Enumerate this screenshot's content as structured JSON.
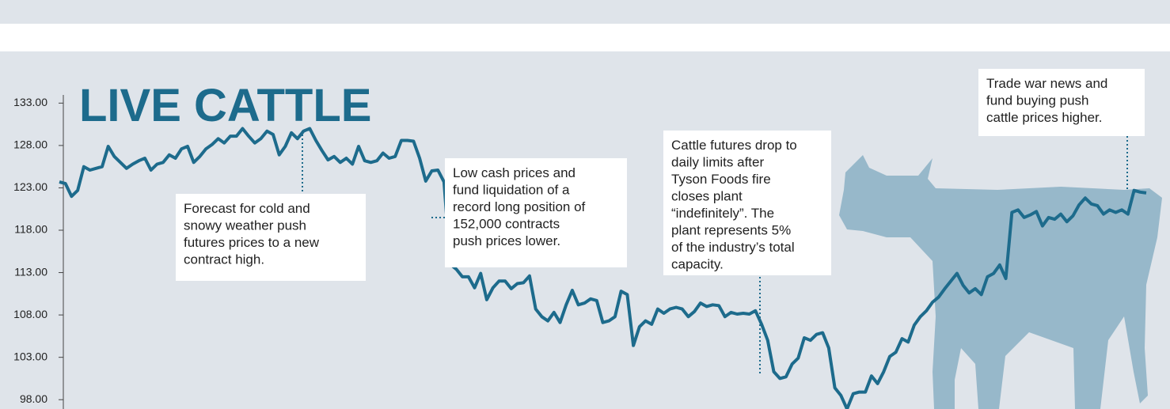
{
  "chart_data": {
    "type": "line",
    "title": "LIVE CATTLE",
    "color": "#1d6b8c",
    "ylim": [
      96.9,
      139.1
    ],
    "yticks": [
      {
        "value": 98,
        "label": "98.00"
      },
      {
        "value": 103,
        "label": "103.00"
      },
      {
        "value": 108,
        "label": "108.00"
      },
      {
        "value": 113,
        "label": "113.00"
      },
      {
        "value": 118,
        "label": "118.00"
      },
      {
        "value": 123,
        "label": "123.00"
      },
      {
        "value": 128,
        "label": "128.00"
      },
      {
        "value": 133,
        "label": "133.00"
      }
    ],
    "values": [
      123.7,
      123.5,
      122.0,
      122.7,
      125.5,
      125.1,
      125.3,
      125.5,
      127.9,
      126.7,
      126.0,
      125.3,
      125.8,
      126.2,
      126.5,
      125.1,
      125.8,
      126.0,
      126.9,
      126.5,
      127.6,
      127.9,
      126.0,
      126.7,
      127.6,
      128.1,
      128.8,
      128.3,
      129.1,
      129.1,
      130.0,
      129.1,
      128.3,
      128.8,
      129.7,
      129.3,
      126.9,
      127.9,
      129.5,
      128.8,
      129.7,
      130.0,
      128.6,
      127.4,
      126.3,
      126.7,
      126.0,
      126.5,
      125.8,
      127.9,
      126.2,
      126.0,
      126.2,
      127.1,
      126.5,
      126.7,
      128.6,
      128.6,
      128.5,
      126.5,
      123.8,
      125.0,
      125.1,
      123.7,
      114.0,
      113.4,
      112.5,
      112.5,
      111.2,
      112.9,
      109.8,
      111.2,
      112.0,
      112.0,
      111.1,
      111.7,
      111.8,
      112.6,
      108.7,
      107.8,
      107.3,
      108.3,
      107.1,
      109.2,
      110.9,
      109.2,
      109.4,
      109.9,
      109.7,
      107.1,
      107.3,
      107.8,
      110.8,
      110.4,
      104.4,
      106.6,
      107.3,
      106.9,
      108.7,
      108.2,
      108.7,
      108.9,
      108.7,
      107.8,
      108.4,
      109.4,
      109.0,
      109.2,
      109.1,
      107.8,
      108.3,
      108.1,
      108.2,
      108.1,
      108.5,
      106.9,
      105.0,
      101.3,
      100.5,
      100.7,
      102.2,
      102.9,
      105.3,
      105.0,
      105.7,
      105.9,
      104.1,
      99.4,
      98.5,
      96.9,
      98.7,
      98.9,
      98.9,
      100.8,
      99.9,
      101.3,
      103.1,
      103.6,
      105.2,
      104.8,
      106.8,
      107.8,
      108.5,
      109.5,
      110.1,
      111.1,
      112.0,
      112.9,
      111.5,
      110.6,
      111.1,
      110.4,
      112.5,
      112.9,
      113.9,
      112.3,
      120.1,
      120.4,
      119.5,
      119.8,
      120.2,
      118.5,
      119.5,
      119.3,
      119.9,
      119.0,
      119.7,
      121.0,
      121.8,
      121.1,
      120.9,
      119.9,
      120.4,
      120.1,
      120.4,
      119.9,
      122.7,
      122.5,
      122.4
    ],
    "annotations": [
      {
        "lines": [
          "Forecast for cold and",
          "snowy weather push",
          "futures prices to a new",
          "contract high."
        ]
      },
      {
        "lines": [
          "Low cash prices and",
          "fund liquidation of a",
          "record long position of",
          "152,000 contracts",
          "push prices lower."
        ]
      },
      {
        "lines": [
          "Cattle futures drop to",
          "daily limits after",
          "Tyson Foods fire",
          "closes plant",
          "“indefinitely”. The",
          "plant represents 5%",
          "of the industry’s total",
          "capacity."
        ]
      },
      {
        "lines": [
          "Trade war news and",
          "fund buying push",
          "cattle prices higher."
        ]
      }
    ]
  }
}
